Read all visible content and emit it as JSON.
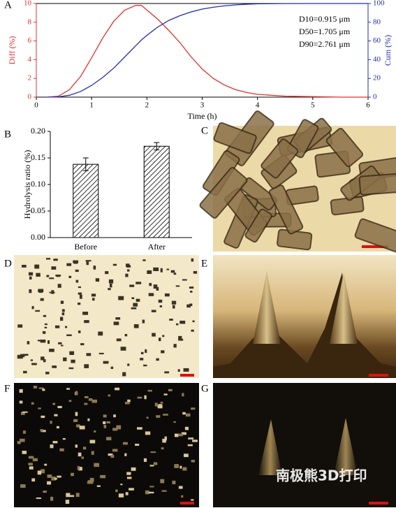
{
  "panel_labels": [
    "A",
    "B",
    "C",
    "D",
    "E",
    "F",
    "G"
  ],
  "watermark": "南极熊3D打印",
  "chart_data": [
    {
      "type": "line",
      "x_label": "Time (h)",
      "y_label": "Diff (%)",
      "y2_label": "Cum (%)",
      "annotations": [
        "D10=0.915 μm",
        "D50=1.705 μm",
        "D90=2.761 μm"
      ],
      "x": [
        0.2,
        0.4,
        0.6,
        0.8,
        1.0,
        1.2,
        1.4,
        1.6,
        1.8,
        1.9,
        2.0,
        2.2,
        2.4,
        2.6,
        2.8,
        3.0,
        3.2,
        3.4,
        3.6,
        3.8,
        4.0,
        4.5,
        5.0,
        5.5,
        6.0
      ],
      "series": [
        {
          "name": "Diff",
          "color": "#e0302c",
          "axis": "y",
          "values": [
            0,
            0.1,
            0.8,
            2.2,
            4.2,
            6.3,
            8.1,
            9.3,
            9.8,
            9.8,
            9.3,
            8.3,
            7.1,
            5.8,
            4.3,
            3.0,
            2.0,
            1.3,
            0.8,
            0.5,
            0.3,
            0.1,
            0.05,
            0,
            0
          ]
        },
        {
          "name": "Cum",
          "color": "#1f2fb0",
          "axis": "y2",
          "values": [
            0,
            0.3,
            2,
            6,
            12.5,
            21,
            31,
            43,
            55,
            61,
            66,
            75,
            82,
            87,
            91,
            94,
            96,
            97.5,
            98.5,
            99.2,
            99.6,
            99.9,
            100,
            100,
            100
          ]
        }
      ],
      "xlim": [
        0,
        6
      ],
      "xticks": [
        0,
        1,
        2,
        3,
        4,
        5,
        6
      ],
      "ylim": [
        0,
        10
      ],
      "yticks": [
        0,
        2,
        4,
        6,
        8,
        10
      ],
      "y2lim": [
        0,
        100
      ],
      "y2ticks": [
        0,
        20,
        40,
        60,
        80,
        100
      ]
    },
    {
      "type": "bar",
      "y_label": "Hydrolysis ratio (%)",
      "categories": [
        "Before",
        "After"
      ],
      "values": [
        0.138,
        0.172
      ],
      "errors": [
        0.012,
        0.007
      ],
      "color": "#000000",
      "ylim": [
        0,
        0.2
      ],
      "yticks": [
        {
          "value": 0,
          "label": "0.00"
        },
        {
          "value": 0.05,
          "label": "0.05"
        },
        {
          "value": 0.1,
          "label": "0.10"
        },
        {
          "value": 0.15,
          "label": "0.15"
        },
        {
          "value": 0.2,
          "label": "0.20"
        }
      ]
    }
  ]
}
